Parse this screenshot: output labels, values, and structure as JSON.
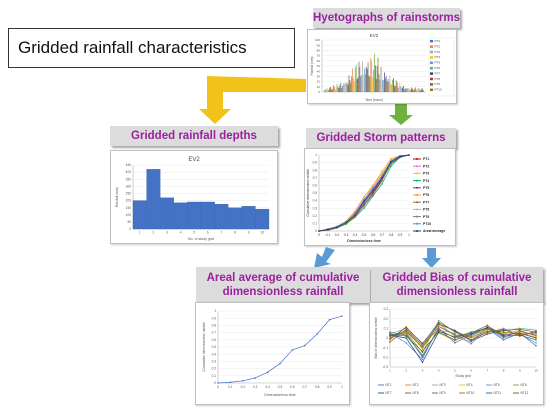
{
  "title": "Gridded rainfall characteristics",
  "labels": {
    "hyetographs": "Hyetographs of rainstorms",
    "depths": "Gridded rainfall depths",
    "storm_patterns": "Gridded Storm patterns",
    "areal_average": "Areal average of cumulative dimensionless rainfall",
    "bias": "Gridded Bias of cumulative dimensionless rainfall"
  },
  "colors": {
    "label_text": "#9b1f9e",
    "arrow_yellow": "#f2c21b",
    "arrow_green": "#6fb13f",
    "arrow_blue": "#5b9bd5"
  },
  "chart_data": [
    {
      "id": "hyetograph",
      "type": "bar",
      "title": "EV2",
      "xlabel": "Time (hours)",
      "ylabel": "Rainfall (mm)",
      "ylim": [
        0,
        100
      ],
      "y_ticks": [
        "0",
        "10",
        "20",
        "30",
        "40",
        "50",
        "60",
        "70",
        "80",
        "90",
        "100"
      ],
      "legend": [
        "PT1",
        "PT2",
        "PT3",
        "PT4",
        "PT5",
        "PT6",
        "PT7",
        "PT8",
        "PT9",
        "PT10"
      ],
      "legend_position": "right",
      "series_colors": [
        "#4472c4",
        "#ed7d31",
        "#a5a5a5",
        "#ffc000",
        "#5b9bd5",
        "#70ad47",
        "#264478",
        "#9e480e",
        "#636363",
        "#997300"
      ]
    },
    {
      "id": "depths",
      "type": "bar",
      "title": "EV2",
      "xlabel": "No. of study grid",
      "ylabel": "Rainfall (mm)",
      "categories": [
        "1",
        "2",
        "3",
        "4",
        "5",
        "6",
        "7",
        "8",
        "9",
        "10"
      ],
      "values": [
        200,
        420,
        220,
        185,
        190,
        190,
        175,
        150,
        160,
        140
      ],
      "ylim": [
        0,
        450
      ],
      "y_ticks": [
        "0",
        "50",
        "100",
        "150",
        "200",
        "250",
        "300",
        "350",
        "400",
        "450"
      ],
      "color": "#4472c4"
    },
    {
      "id": "storm_patterns",
      "type": "line",
      "xlabel": "Dimensionless time",
      "ylabel": "Cumulative dimensionless rainfall",
      "x": [
        0,
        0.1,
        0.2,
        0.3,
        0.4,
        0.5,
        0.6,
        0.7,
        0.8,
        0.9,
        1
      ],
      "x_ticks": [
        "0",
        "0.1",
        "0.2",
        "0.3",
        "0.4",
        "0.5",
        "0.6",
        "0.7",
        "0.8",
        "0.9",
        "1"
      ],
      "y_ticks": [
        "0",
        "0.1",
        "0.2",
        "0.3",
        "0.4",
        "0.5",
        "0.6",
        "0.7",
        "0.8",
        "0.9",
        "1"
      ],
      "ylim": [
        0,
        1
      ],
      "series": [
        {
          "name": "PT1",
          "color": "#c00000",
          "values": [
            0,
            0.02,
            0.05,
            0.1,
            0.2,
            0.38,
            0.52,
            0.68,
            0.9,
            0.98,
            1
          ]
        },
        {
          "name": "PT2",
          "color": "#ff66cc",
          "values": [
            0,
            0.03,
            0.06,
            0.12,
            0.24,
            0.42,
            0.55,
            0.72,
            0.92,
            0.98,
            1
          ]
        },
        {
          "name": "PT3",
          "color": "#ffc000",
          "values": [
            0,
            0.02,
            0.05,
            0.11,
            0.22,
            0.4,
            0.6,
            0.75,
            0.93,
            0.99,
            1
          ]
        },
        {
          "name": "PT4",
          "color": "#00b050",
          "values": [
            0,
            0.01,
            0.04,
            0.09,
            0.18,
            0.3,
            0.46,
            0.62,
            0.85,
            0.97,
            1
          ]
        },
        {
          "name": "PT5",
          "color": "#7030a0",
          "values": [
            0,
            0.02,
            0.05,
            0.1,
            0.2,
            0.35,
            0.5,
            0.67,
            0.88,
            0.97,
            1
          ]
        },
        {
          "name": "PT6",
          "color": "#ff9900",
          "values": [
            0,
            0.02,
            0.06,
            0.13,
            0.26,
            0.45,
            0.6,
            0.78,
            0.95,
            0.99,
            1
          ]
        },
        {
          "name": "PT7",
          "color": "#996633",
          "values": [
            0,
            0.01,
            0.04,
            0.1,
            0.19,
            0.33,
            0.48,
            0.66,
            0.9,
            0.98,
            1
          ]
        },
        {
          "name": "PT8",
          "color": "#cc99ff",
          "values": [
            0,
            0.02,
            0.05,
            0.11,
            0.21,
            0.39,
            0.54,
            0.7,
            0.91,
            0.98,
            1
          ]
        },
        {
          "name": "PT9",
          "color": "#808080",
          "values": [
            0,
            0.02,
            0.05,
            0.1,
            0.2,
            0.37,
            0.53,
            0.69,
            0.89,
            0.98,
            1
          ]
        },
        {
          "name": "PT10",
          "color": "#3399ff",
          "values": [
            0,
            0.02,
            0.06,
            0.12,
            0.23,
            0.41,
            0.57,
            0.73,
            0.92,
            0.99,
            1
          ]
        },
        {
          "name": "Areal average",
          "color": "#1f3864",
          "values": [
            0,
            0.02,
            0.05,
            0.11,
            0.21,
            0.39,
            0.54,
            0.7,
            0.91,
            0.98,
            1
          ]
        }
      ],
      "legend_position": "right"
    },
    {
      "id": "areal_average",
      "type": "line",
      "xlabel": "Dimensionless time",
      "ylabel": "Cumulative dimensionless rainfall",
      "x": [
        0,
        0.1,
        0.2,
        0.3,
        0.4,
        0.5,
        0.6,
        0.7,
        0.8,
        0.9,
        1
      ],
      "x_ticks": [
        "0",
        "0.1",
        "0.2",
        "0.3",
        "0.4",
        "0.5",
        "0.6",
        "0.7",
        "0.8",
        "0.9",
        "1"
      ],
      "y_ticks": [
        "0",
        "0.1",
        "0.2",
        "0.3",
        "0.4",
        "0.5",
        "0.6",
        "0.7",
        "0.8",
        "0.9",
        "1"
      ],
      "ylim": [
        0,
        1
      ],
      "series": [
        {
          "color": "#4472c4",
          "values": [
            0,
            0.01,
            0.03,
            0.07,
            0.15,
            0.27,
            0.46,
            0.52,
            0.68,
            0.88,
            0.93
          ]
        }
      ]
    },
    {
      "id": "bias",
      "type": "line",
      "xlabel": "Study grid",
      "ylabel": "Bias of dimensionless rainfall",
      "categories": [
        "1",
        "2",
        "3",
        "4",
        "5",
        "6",
        "7",
        "8",
        "9",
        "10"
      ],
      "y_ticks": [
        "-0.3",
        "-0.2",
        "-0.1",
        "0",
        "0.1",
        "0.2",
        "0.3"
      ],
      "ylim": [
        -0.3,
        0.3
      ],
      "legend_position": "bottom",
      "series": [
        {
          "name": "NT1",
          "color": "#4472c4",
          "values": [
            0.02,
            0.05,
            -0.2,
            0.1,
            -0.05,
            0.03,
            0.1,
            -0.02,
            0.05,
            -0.08
          ]
        },
        {
          "name": "NT2",
          "color": "#ed7d31",
          "values": [
            0.01,
            0.08,
            -0.1,
            0.15,
            0.02,
            -0.04,
            0.12,
            0.04,
            0.08,
            0.02
          ]
        },
        {
          "name": "NT3",
          "color": "#a5a5a5",
          "values": [
            0.04,
            0.1,
            -0.05,
            0.08,
            0.05,
            0.0,
            0.05,
            0.1,
            0.03,
            0.06
          ]
        },
        {
          "name": "NT4",
          "color": "#ffc000",
          "values": [
            -0.02,
            0.12,
            -0.12,
            0.05,
            -0.03,
            0.06,
            0.08,
            0.05,
            0.06,
            0.01
          ]
        },
        {
          "name": "NT5",
          "color": "#5b9bd5",
          "values": [
            0.05,
            -0.05,
            -0.22,
            0.12,
            0.04,
            -0.06,
            0.1,
            0.0,
            0.04,
            -0.05
          ]
        },
        {
          "name": "NT6",
          "color": "#70ad47",
          "values": [
            0.0,
            0.06,
            -0.15,
            0.18,
            0.06,
            0.02,
            0.09,
            0.07,
            0.1,
            0.08
          ]
        },
        {
          "name": "NT7",
          "color": "#264478",
          "values": [
            0.03,
            0.0,
            -0.25,
            0.06,
            -0.02,
            0.04,
            0.11,
            0.03,
            0.05,
            0.0
          ]
        },
        {
          "name": "NT8",
          "color": "#9e480e",
          "values": [
            -0.04,
            0.09,
            -0.08,
            0.14,
            0.08,
            -0.02,
            0.06,
            0.09,
            0.02,
            0.07
          ]
        },
        {
          "name": "NT9",
          "color": "#636363",
          "values": [
            0.06,
            0.03,
            -0.18,
            0.09,
            0.0,
            0.05,
            0.13,
            0.01,
            0.07,
            0.03
          ]
        },
        {
          "name": "NT10",
          "color": "#997300",
          "values": [
            0.02,
            0.07,
            -0.1,
            0.12,
            0.03,
            0.01,
            0.07,
            0.06,
            0.04,
            0.05
          ]
        },
        {
          "name": "NT11",
          "color": "#255e91",
          "values": [
            -0.01,
            0.11,
            -0.06,
            0.16,
            0.07,
            -0.03,
            0.04,
            0.08,
            0.09,
            0.06
          ]
        },
        {
          "name": "NT12",
          "color": "#43682b",
          "values": [
            0.04,
            0.02,
            -0.14,
            0.07,
            0.01,
            0.06,
            0.1,
            0.02,
            0.03,
            -0.02
          ]
        }
      ]
    }
  ]
}
